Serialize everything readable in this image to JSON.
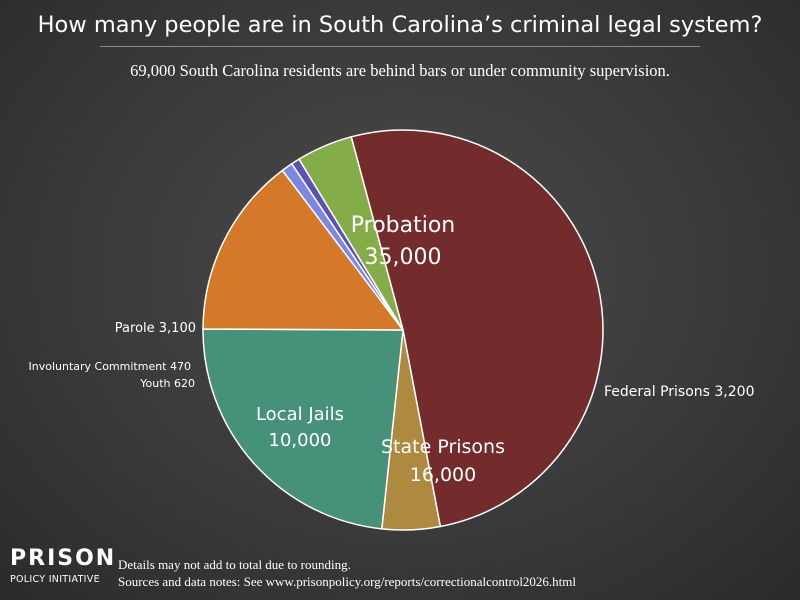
{
  "header": {
    "title": "How many people are in South Carolina’s criminal legal system?",
    "subtitle": "69,000 South Carolina residents are behind bars or under community supervision."
  },
  "chart_data": {
    "type": "pie",
    "title": "How many people are in South Carolina’s criminal legal system?",
    "subtitle": "69,000 South Carolina residents are behind bars or under community supervision.",
    "slices": [
      {
        "key": "probation",
        "label": "Probation",
        "value": 35000,
        "value_label": "35,000",
        "color": "#742b2c"
      },
      {
        "key": "federal-prisons",
        "label": "Federal Prisons",
        "value": 3200,
        "value_label": "3,200",
        "color": "#ad8a3f"
      },
      {
        "key": "state-prisons",
        "label": "State Prisons",
        "value": 16000,
        "value_label": "16,000",
        "color": "#45917a"
      },
      {
        "key": "local-jails",
        "label": "Local Jails",
        "value": 10000,
        "value_label": "10,000",
        "color": "#d4792a"
      },
      {
        "key": "youth",
        "label": "Youth",
        "value": 620,
        "value_label": "620",
        "color": "#7c86e3"
      },
      {
        "key": "involuntary-commitment",
        "label": "Involuntary Commitment",
        "value": 470,
        "value_label": "470",
        "color": "#5a53b4"
      },
      {
        "key": "parole",
        "label": "Parole",
        "value": 3100,
        "value_label": "3,100",
        "color": "#84ac48"
      }
    ]
  },
  "logo": {
    "main": "PRISON",
    "sub": "POLICY INITIATIVE"
  },
  "footer": {
    "line1": "Details may not add to total due to rounding.",
    "line2": "Sources and data notes: See www.prisonpolicy.org/reports/correctionalcontrol2026.html"
  }
}
